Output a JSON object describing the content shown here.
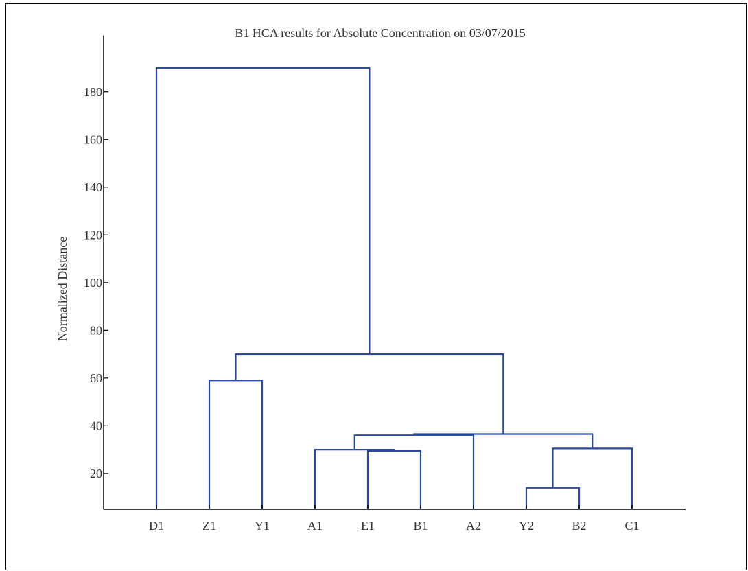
{
  "chart_data": {
    "type": "dendrogram",
    "title": "B1 HCA results for Absolute Concentration on 03/07/2015",
    "xlabel": "",
    "ylabel": "Normalized Distance",
    "ylim": [
      5,
      195
    ],
    "yticks": [
      20,
      40,
      60,
      80,
      100,
      120,
      140,
      160,
      180
    ],
    "leaves": [
      "D1",
      "Z1",
      "Y1",
      "A1",
      "E1",
      "B1",
      "A2",
      "Y2",
      "B2",
      "C1"
    ],
    "merges": [
      {
        "left": "Y2",
        "right": "B2",
        "height": 14
      },
      {
        "left": "E1",
        "right": "B1",
        "height": 29.5
      },
      {
        "left": "A1",
        "right": "E1+B1",
        "height": 30
      },
      {
        "left": "Y2+B2",
        "right": "C1",
        "height": 30.5
      },
      {
        "left": "A1+E1+B1",
        "right": "A2",
        "height": 36
      },
      {
        "left": "A1+E1+B1+A2",
        "right": "Y2+B2+C1",
        "height": 36.5
      },
      {
        "left": "Z1",
        "right": "Y1",
        "height": 59
      },
      {
        "left": "Z1+Y1",
        "right": "A1+E1+B1+A2+Y2+B2+C1",
        "height": 70
      },
      {
        "left": "D1",
        "right": "Z1+Y1+A1+E1+B1+A2+Y2+B2+C1",
        "height": 190
      }
    ],
    "line_color": "#2c4a9a",
    "grid": false
  }
}
